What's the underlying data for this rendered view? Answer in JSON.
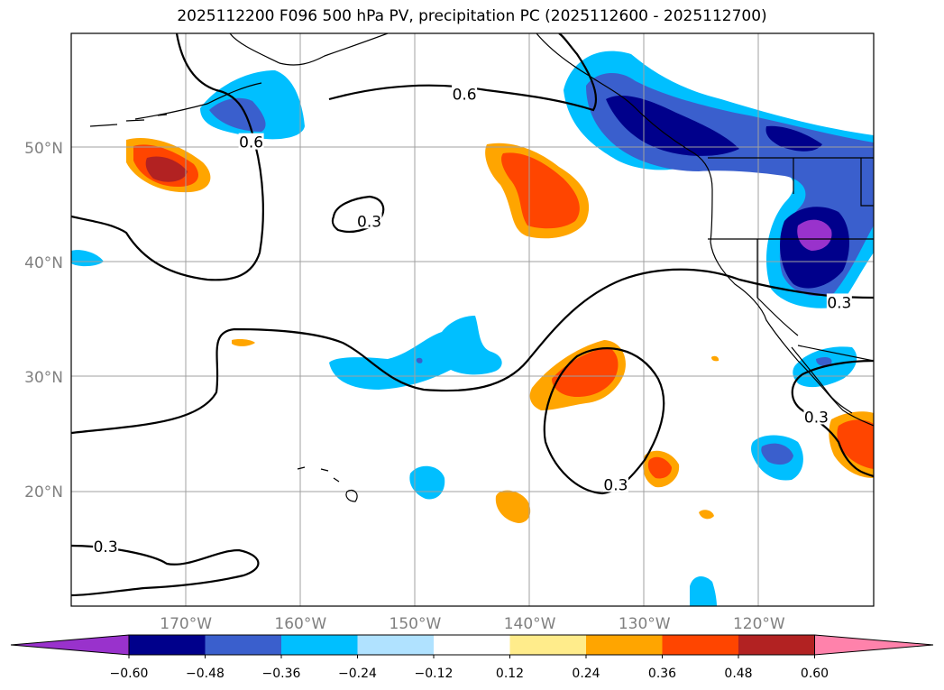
{
  "title": "2025112200 F096 500 hPa PV, precipitation PC (2025112600 - 2025112700)",
  "map": {
    "lon_range": [
      -180,
      -110
    ],
    "lat_range": [
      10,
      60
    ],
    "lon_ticks": [
      {
        "value": -170,
        "label": "170°W"
      },
      {
        "value": -160,
        "label": "160°W"
      },
      {
        "value": -150,
        "label": "150°W"
      },
      {
        "value": -140,
        "label": "140°W"
      },
      {
        "value": -130,
        "label": "130°W"
      },
      {
        "value": -120,
        "label": "120°W"
      }
    ],
    "lat_ticks": [
      {
        "value": 50,
        "label": "50°N"
      },
      {
        "value": 40,
        "label": "40°N"
      },
      {
        "value": 30,
        "label": "30°N"
      },
      {
        "value": 20,
        "label": "20°N"
      }
    ],
    "contour_labels": [
      {
        "text": "0.6",
        "lon": -145.7,
        "lat": 54.7
      },
      {
        "text": "0.6",
        "lon": -164.3,
        "lat": 50.5
      },
      {
        "text": "0.3",
        "lon": -154.0,
        "lat": 43.6
      },
      {
        "text": "0.3",
        "lon": -113.0,
        "lat": 36.5
      },
      {
        "text": "0.3",
        "lon": -115.0,
        "lat": 26.5
      },
      {
        "text": "0.3",
        "lon": -132.5,
        "lat": 20.6
      },
      {
        "text": "0.3",
        "lon": -177.0,
        "lat": 15.2
      }
    ]
  },
  "colorbar": {
    "tick_labels": [
      "−0.60",
      "−0.48",
      "−0.36",
      "−0.24",
      "−0.12",
      "0.12",
      "0.24",
      "0.36",
      "0.48",
      "0.60"
    ],
    "colors": [
      "#9932cc",
      "#00008b",
      "#3a5fcd",
      "#00bfff",
      "#b0e2ff",
      "#ffffff",
      "#ffec8b",
      "#ffa500",
      "#ff4500",
      "#b22222",
      "#ff82ab"
    ]
  }
}
